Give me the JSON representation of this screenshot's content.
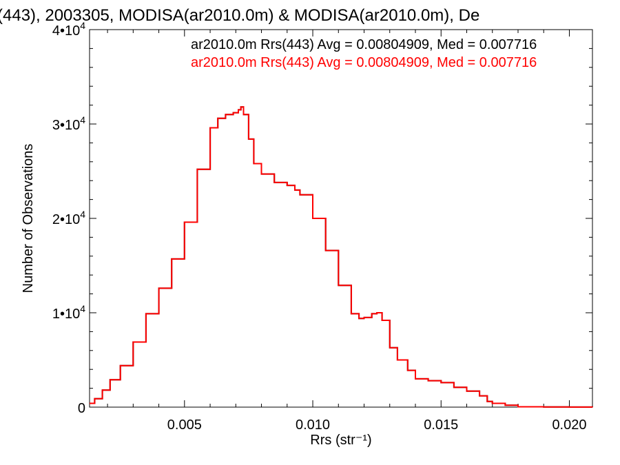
{
  "chart_data": {
    "type": "line",
    "title": "(443), 2003305, MODISA(ar2010.0m) & MODISA(ar2010.0m), De",
    "xlabel": "Rrs (str⁻¹)",
    "ylabel": "Number of Observations",
    "xlim": [
      0.0013,
      0.0209
    ],
    "ylim": [
      0,
      40000
    ],
    "x_ticks": [
      0.005,
      0.01,
      0.015,
      0.02
    ],
    "x_tick_labels": [
      "0.005",
      "0.010",
      "0.015",
      "0.020"
    ],
    "y_ticks": [
      0,
      10000,
      20000,
      30000,
      40000
    ],
    "y_tick_labels": [
      {
        "mantissa": "0",
        "exponent": ""
      },
      {
        "mantissa": "1•10",
        "exponent": "4"
      },
      {
        "mantissa": "2•10",
        "exponent": "4"
      },
      {
        "mantissa": "3•10",
        "exponent": "4"
      },
      {
        "mantissa": "4•10",
        "exponent": "4"
      }
    ],
    "grid": false,
    "legend_position": "top-right",
    "series": [
      {
        "name": "ar2010.0m Rrs(443) Avg = 0.00804909, Med = 0.007716",
        "color": "#000000",
        "x": [
          0.0013,
          0.0015,
          0.0018,
          0.0021,
          0.0025,
          0.003,
          0.0035,
          0.004,
          0.0045,
          0.005,
          0.0055,
          0.006,
          0.0063,
          0.0066,
          0.0069,
          0.0071,
          0.0072,
          0.0073,
          0.0075,
          0.0077,
          0.008,
          0.0085,
          0.009,
          0.0093,
          0.0095,
          0.01,
          0.0105,
          0.011,
          0.0115,
          0.0118,
          0.012,
          0.0123,
          0.0125,
          0.0127,
          0.013,
          0.0133,
          0.0137,
          0.014,
          0.0145,
          0.015,
          0.0155,
          0.016,
          0.0165,
          0.0168,
          0.017,
          0.0175,
          0.018,
          0.019,
          0.02,
          0.0209
        ],
        "y": [
          400,
          900,
          1800,
          2900,
          4400,
          6900,
          9900,
          12600,
          15700,
          19600,
          25200,
          29600,
          30600,
          31000,
          31200,
          31500,
          31800,
          31000,
          28400,
          25800,
          24700,
          23800,
          23500,
          23000,
          22500,
          20000,
          16600,
          12900,
          9900,
          9400,
          9500,
          9900,
          10000,
          9200,
          6300,
          5000,
          3900,
          3000,
          2800,
          2600,
          2100,
          1700,
          1200,
          600,
          400,
          200,
          40,
          20,
          10,
          0
        ]
      },
      {
        "name": "ar2010.0m Rrs(443) Avg = 0.00804909, Med = 0.007716",
        "color": "#ff0000",
        "x": [
          0.0013,
          0.0015,
          0.0018,
          0.0021,
          0.0025,
          0.003,
          0.0035,
          0.004,
          0.0045,
          0.005,
          0.0055,
          0.006,
          0.0063,
          0.0066,
          0.0069,
          0.0071,
          0.0072,
          0.0073,
          0.0075,
          0.0077,
          0.008,
          0.0085,
          0.009,
          0.0093,
          0.0095,
          0.01,
          0.0105,
          0.011,
          0.0115,
          0.0118,
          0.012,
          0.0123,
          0.0125,
          0.0127,
          0.013,
          0.0133,
          0.0137,
          0.014,
          0.0145,
          0.015,
          0.0155,
          0.016,
          0.0165,
          0.0168,
          0.017,
          0.0175,
          0.018,
          0.019,
          0.02,
          0.0209
        ],
        "y": [
          400,
          900,
          1800,
          2900,
          4400,
          6900,
          9900,
          12600,
          15700,
          19600,
          25200,
          29600,
          30600,
          31000,
          31200,
          31500,
          31800,
          31000,
          28400,
          25800,
          24700,
          23800,
          23500,
          23000,
          22500,
          20000,
          16600,
          12900,
          9900,
          9400,
          9500,
          9900,
          10000,
          9200,
          6300,
          5000,
          3900,
          3000,
          2800,
          2600,
          2100,
          1700,
          1200,
          600,
          400,
          200,
          40,
          20,
          10,
          0
        ]
      }
    ]
  }
}
